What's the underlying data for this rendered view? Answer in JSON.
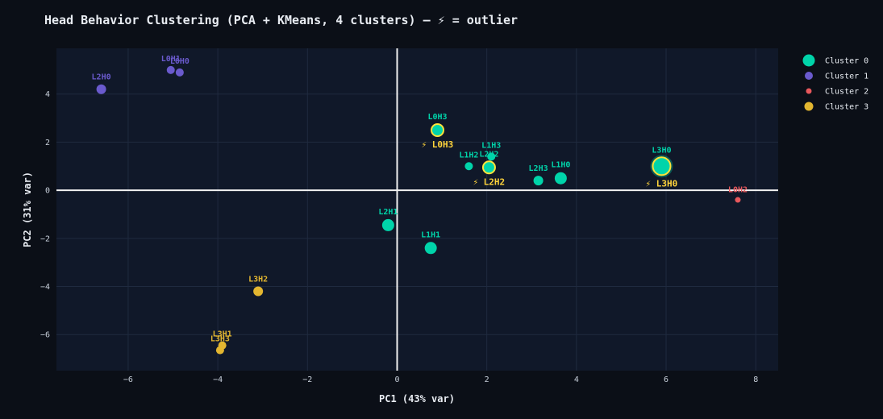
{
  "chart_data": {
    "type": "scatter",
    "title": "Head Behavior Clustering (PCA + KMeans, 4 clusters) — ⚡ = outlier",
    "xlabel": "PC1 (43% var)",
    "ylabel": "PC2 (31% var)",
    "xlim": [
      -7.6,
      8.5
    ],
    "ylim": [
      -7.5,
      5.9
    ],
    "xticks": [
      -6,
      -4,
      -2,
      0,
      2,
      4,
      6,
      8
    ],
    "yticks": [
      -6,
      -4,
      -2,
      0,
      2,
      4
    ],
    "grid": true,
    "zero_lines": true,
    "legend_position": "top-right, outside plot",
    "outlier_marker": "⚡",
    "series": [
      {
        "name": "Cluster 0",
        "color": "#00d4aa",
        "points": [
          {
            "label": "L0H3",
            "x": 0.9,
            "y": 2.5,
            "size": "large",
            "outlier": true
          },
          {
            "label": "L1H2",
            "x": 1.6,
            "y": 1.0,
            "size": "small"
          },
          {
            "label": "L1H3",
            "x": 2.1,
            "y": 1.4,
            "size": "small"
          },
          {
            "label": "L2H2",
            "x": 2.05,
            "y": 0.95,
            "size": "large",
            "outlier": true
          },
          {
            "label": "L2H3",
            "x": 3.15,
            "y": 0.4,
            "size": "medium"
          },
          {
            "label": "L1H0",
            "x": 3.65,
            "y": 0.5,
            "size": "large"
          },
          {
            "label": "L3H0",
            "x": 5.9,
            "y": 1.0,
            "size": "xlarge",
            "outlier": true
          },
          {
            "label": "L2H1",
            "x": -0.2,
            "y": -1.45,
            "size": "large"
          },
          {
            "label": "L1H1",
            "x": 0.75,
            "y": -2.4,
            "size": "large"
          }
        ]
      },
      {
        "name": "Cluster 1",
        "color": "#6a5acd",
        "points": [
          {
            "label": "L2H0",
            "x": -6.6,
            "y": 4.2,
            "size": "medium"
          },
          {
            "label": "L0H1",
            "x": -5.05,
            "y": 5.0,
            "size": "small"
          },
          {
            "label": "L0H0",
            "x": -4.85,
            "y": 4.9,
            "size": "small"
          }
        ]
      },
      {
        "name": "Cluster 2",
        "color": "#e8585c",
        "points": [
          {
            "label": "L0H2",
            "x": 7.6,
            "y": -0.4,
            "size": "tiny"
          }
        ]
      },
      {
        "name": "Cluster 3",
        "color": "#e3b630",
        "points": [
          {
            "label": "L3H2",
            "x": -3.1,
            "y": -4.2,
            "size": "medium"
          },
          {
            "label": "L3H1",
            "x": -3.9,
            "y": -6.45,
            "size": "small"
          },
          {
            "label": "L3H3",
            "x": -3.95,
            "y": -6.65,
            "size": "small"
          }
        ]
      }
    ]
  }
}
